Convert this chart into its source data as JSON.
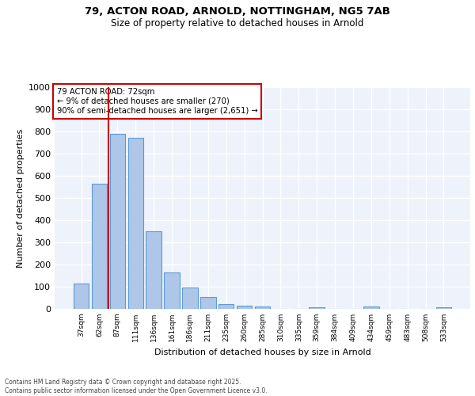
{
  "title_line1": "79, ACTON ROAD, ARNOLD, NOTTINGHAM, NG5 7AB",
  "title_line2": "Size of property relative to detached houses in Arnold",
  "xlabel": "Distribution of detached houses by size in Arnold",
  "ylabel": "Number of detached properties",
  "categories": [
    "37sqm",
    "62sqm",
    "87sqm",
    "111sqm",
    "136sqm",
    "161sqm",
    "186sqm",
    "211sqm",
    "235sqm",
    "260sqm",
    "285sqm",
    "310sqm",
    "335sqm",
    "359sqm",
    "384sqm",
    "409sqm",
    "434sqm",
    "459sqm",
    "483sqm",
    "508sqm",
    "533sqm"
  ],
  "values": [
    115,
    565,
    790,
    770,
    350,
    165,
    97,
    52,
    20,
    13,
    10,
    0,
    0,
    7,
    0,
    0,
    10,
    0,
    0,
    0,
    7
  ],
  "bar_color": "#aec6e8",
  "bar_edge_color": "#5b9bd5",
  "vline_x": 1.5,
  "vline_color": "#cc0000",
  "annotation_text": "79 ACTON ROAD: 72sqm\n← 9% of detached houses are smaller (270)\n90% of semi-detached houses are larger (2,651) →",
  "annotation_box_color": "#ffffff",
  "annotation_box_edge": "#cc0000",
  "ylim": [
    0,
    1000
  ],
  "yticks": [
    0,
    100,
    200,
    300,
    400,
    500,
    600,
    700,
    800,
    900,
    1000
  ],
  "bg_color": "#eef2fb",
  "grid_color": "#ffffff",
  "footer_line1": "Contains HM Land Registry data © Crown copyright and database right 2025.",
  "footer_line2": "Contains public sector information licensed under the Open Government Licence v3.0."
}
